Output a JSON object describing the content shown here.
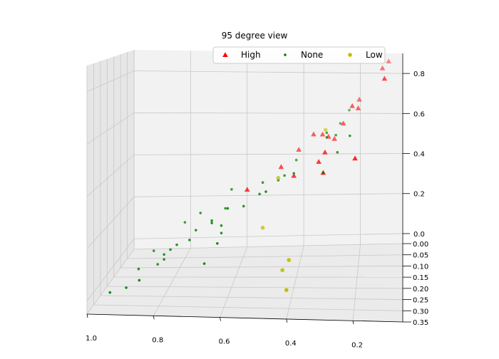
{
  "chart_data": {
    "type": "scatter",
    "projection": "3d",
    "title": "95 degree view",
    "xlabel": "",
    "ylabel": "",
    "zlabel": "",
    "grid": true,
    "legend_position": "top-center",
    "legend_columns": 3,
    "axes": {
      "x": {
        "lim": [
          0.05,
          1.0
        ],
        "ticks": [
          1.0,
          0.8,
          0.6,
          0.4,
          0.2
        ],
        "tick_labels": [
          "1.0",
          "0.8",
          "0.6",
          "0.4",
          "0.2"
        ]
      },
      "y": {
        "lim": [
          0.0,
          0.35
        ],
        "ticks": [
          0.0,
          0.05,
          0.1,
          0.15,
          0.2,
          0.25,
          0.3,
          0.35
        ],
        "tick_labels": [
          "0.00",
          "0.05",
          "0.10",
          "0.15",
          "0.20",
          "0.25",
          "0.30",
          "0.35"
        ]
      },
      "z": {
        "lim": [
          -0.05,
          0.9
        ],
        "ticks": [
          0.0,
          0.2,
          0.4,
          0.6,
          0.8
        ],
        "tick_labels": [
          "0.0",
          "0.2",
          "0.4",
          "0.6",
          "0.8"
        ]
      }
    },
    "series": [
      {
        "name": "High",
        "color": "#ff0000",
        "marker": "triangle",
        "points": [
          [
            0.1,
            0.0,
            0.86
          ],
          [
            0.12,
            0.05,
            0.84
          ],
          [
            0.11,
            0.15,
            0.82
          ],
          [
            0.22,
            0.1,
            0.68
          ],
          [
            0.2,
            0.1,
            0.67
          ],
          [
            0.2,
            0.05,
            0.69
          ],
          [
            0.25,
            0.1,
            0.6
          ],
          [
            0.3,
            0.1,
            0.54
          ],
          [
            0.32,
            0.1,
            0.55
          ],
          [
            0.35,
            0.1,
            0.55
          ],
          [
            0.28,
            0.1,
            0.53
          ],
          [
            0.3,
            0.2,
            0.52
          ],
          [
            0.2,
            0.25,
            0.52
          ],
          [
            0.32,
            0.2,
            0.48
          ],
          [
            0.3,
            0.25,
            0.46
          ],
          [
            0.4,
            0.1,
            0.48
          ],
          [
            0.45,
            0.15,
            0.43
          ],
          [
            0.4,
            0.2,
            0.42
          ],
          [
            0.55,
            0.2,
            0.36
          ]
        ]
      },
      {
        "name": "None",
        "color": "#008000",
        "marker": "point",
        "points": [
          [
            0.23,
            0.1,
            0.66
          ],
          [
            0.26,
            0.1,
            0.6
          ],
          [
            0.3,
            0.15,
            0.58
          ],
          [
            0.22,
            0.2,
            0.59
          ],
          [
            0.27,
            0.15,
            0.57
          ],
          [
            0.3,
            0.15,
            0.56
          ],
          [
            0.26,
            0.2,
            0.52
          ],
          [
            0.3,
            0.25,
            0.46
          ],
          [
            0.4,
            0.15,
            0.46
          ],
          [
            0.4,
            0.2,
            0.43
          ],
          [
            0.43,
            0.2,
            0.42
          ],
          [
            0.45,
            0.2,
            0.4
          ],
          [
            0.48,
            0.25,
            0.38
          ],
          [
            0.5,
            0.2,
            0.39
          ],
          [
            0.5,
            0.25,
            0.37
          ],
          [
            0.6,
            0.2,
            0.36
          ],
          [
            0.55,
            0.25,
            0.32
          ],
          [
            0.6,
            0.25,
            0.31
          ],
          [
            0.62,
            0.2,
            0.28
          ],
          [
            0.7,
            0.2,
            0.26
          ],
          [
            0.65,
            0.25,
            0.26
          ],
          [
            0.75,
            0.2,
            0.22
          ],
          [
            0.62,
            0.25,
            0.24
          ],
          [
            0.62,
            0.3,
            0.2
          ],
          [
            0.62,
            0.25,
            0.21
          ],
          [
            0.76,
            0.25,
            0.16
          ],
          [
            0.72,
            0.25,
            0.18
          ],
          [
            0.66,
            0.3,
            0.12
          ],
          [
            0.78,
            0.25,
            0.14
          ],
          [
            0.8,
            0.25,
            0.12
          ],
          [
            0.85,
            0.2,
            0.1
          ],
          [
            0.88,
            0.25,
            0.06
          ],
          [
            0.9,
            0.3,
            0.02
          ],
          [
            0.95,
            0.3,
            0.0
          ],
          [
            0.8,
            0.25,
            0.1
          ],
          [
            0.82,
            0.25,
            0.08
          ],
          [
            0.86,
            0.3,
            0.05
          ],
          [
            0.65,
            0.25,
            0.25
          ],
          [
            0.7,
            0.25,
            0.22
          ]
        ]
      },
      {
        "name": "Low",
        "color": "#bfbf00",
        "marker": "circle",
        "points": [
          [
            0.31,
            0.1,
            0.57
          ],
          [
            0.45,
            0.2,
            0.41
          ],
          [
            0.5,
            0.2,
            0.2
          ],
          [
            0.4,
            0.3,
            0.14
          ],
          [
            0.42,
            0.3,
            0.1
          ],
          [
            0.4,
            0.35,
            0.06
          ]
        ]
      }
    ]
  }
}
